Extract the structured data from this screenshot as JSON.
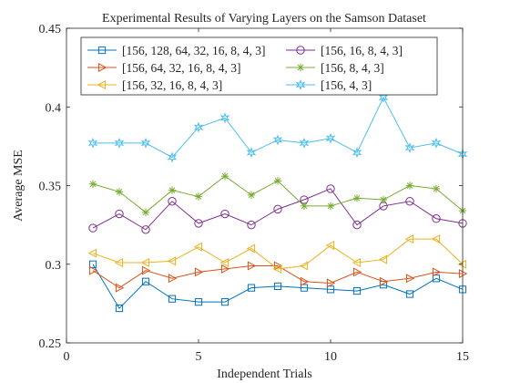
{
  "chart_data": {
    "type": "line",
    "title": "Experimental Results of Varying Layers on the Samson Dataset",
    "xlabel": "Independent Trials",
    "ylabel": "Average MSE",
    "xlim": [
      0,
      15
    ],
    "ylim": [
      0.25,
      0.45
    ],
    "xticks": [
      0,
      5,
      10,
      15
    ],
    "yticks": [
      0.25,
      0.3,
      0.35,
      0.4,
      0.45
    ],
    "xtick_labels": [
      "0",
      "5",
      "10",
      "15"
    ],
    "ytick_labels": [
      "0.25",
      "0.3",
      "0.35",
      "0.4",
      "0.45"
    ],
    "grid": false,
    "legend_position": "top",
    "legend_columns": 2,
    "x": [
      1,
      2,
      3,
      4,
      5,
      6,
      7,
      8,
      9,
      10,
      11,
      12,
      13,
      14,
      15
    ],
    "series": [
      {
        "name": "[156, 128, 64, 32, 16, 8, 4, 3]",
        "color": "#0072BD",
        "marker": "square",
        "values": [
          0.3,
          0.272,
          0.289,
          0.278,
          0.276,
          0.276,
          0.285,
          0.286,
          0.285,
          0.284,
          0.283,
          0.287,
          0.281,
          0.291,
          0.284
        ]
      },
      {
        "name": "[156, 64, 32, 16, 8, 4, 3]",
        "color": "#D95319",
        "marker": "triangle-right",
        "values": [
          0.296,
          0.285,
          0.296,
          0.291,
          0.295,
          0.297,
          0.299,
          0.299,
          0.289,
          0.288,
          0.295,
          0.289,
          0.291,
          0.295,
          0.294
        ]
      },
      {
        "name": "[156, 32, 16, 8, 4, 3]",
        "color": "#EDB120",
        "marker": "triangle-left",
        "values": [
          0.307,
          0.301,
          0.301,
          0.302,
          0.311,
          0.301,
          0.31,
          0.297,
          0.299,
          0.312,
          0.301,
          0.303,
          0.316,
          0.316,
          0.3
        ]
      },
      {
        "name": "[156, 16, 8, 4, 3]",
        "color": "#7E2F8E",
        "marker": "circle",
        "values": [
          0.323,
          0.332,
          0.322,
          0.34,
          0.326,
          0.332,
          0.325,
          0.335,
          0.341,
          0.348,
          0.325,
          0.337,
          0.34,
          0.329,
          0.326
        ]
      },
      {
        "name": "[156, 8, 4, 3]",
        "color": "#77AC30",
        "marker": "asterisk",
        "values": [
          0.351,
          0.346,
          0.333,
          0.347,
          0.343,
          0.356,
          0.344,
          0.353,
          0.337,
          0.337,
          0.342,
          0.341,
          0.35,
          0.348,
          0.334
        ]
      },
      {
        "name": "[156, 4, 3]",
        "color": "#4DBEEE",
        "marker": "hexagram",
        "values": [
          0.377,
          0.377,
          0.377,
          0.368,
          0.387,
          0.393,
          0.371,
          0.379,
          0.377,
          0.38,
          0.371,
          0.406,
          0.374,
          0.377,
          0.37
        ]
      }
    ]
  }
}
